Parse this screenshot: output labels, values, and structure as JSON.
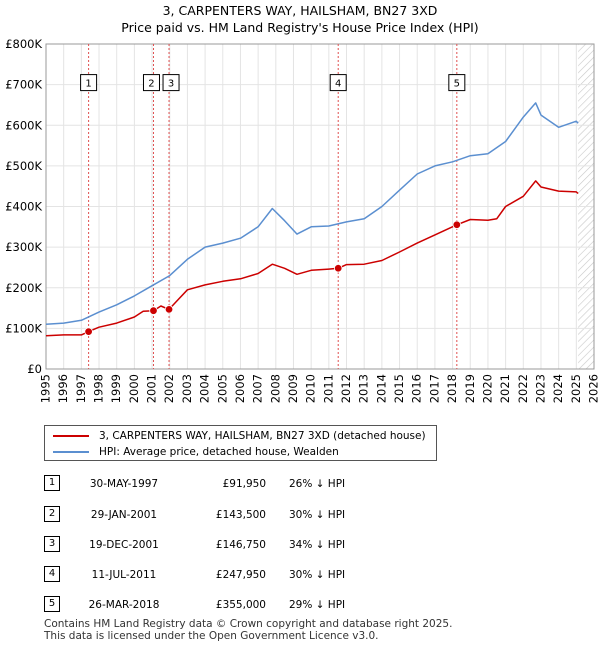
{
  "title": {
    "line1": "3, CARPENTERS WAY, HAILSHAM, BN27 3XD",
    "line2": "Price paid vs. HM Land Registry's House Price Index (HPI)"
  },
  "chart_data": {
    "type": "line",
    "title": "3, CARPENTERS WAY, HAILSHAM, BN27 3XD — Price paid vs. HM Land Registry's House Price Index (HPI)",
    "xlim": [
      1995,
      2026
    ],
    "ylim": [
      0,
      800000
    ],
    "x_ticks": [
      "1995",
      "1996",
      "1997",
      "1998",
      "1999",
      "2000",
      "2001",
      "2002",
      "2003",
      "2004",
      "2005",
      "2006",
      "2007",
      "2008",
      "2009",
      "2010",
      "2011",
      "2012",
      "2013",
      "2014",
      "2015",
      "2016",
      "2017",
      "2018",
      "2019",
      "2020",
      "2021",
      "2022",
      "2023",
      "2024",
      "2025",
      "2026"
    ],
    "y_ticks": [
      {
        "value": 0,
        "label": "£0"
      },
      {
        "value": 100000,
        "label": "£100K"
      },
      {
        "value": 200000,
        "label": "£200K"
      },
      {
        "value": 300000,
        "label": "£300K"
      },
      {
        "value": 400000,
        "label": "£400K"
      },
      {
        "value": 500000,
        "label": "£500K"
      },
      {
        "value": 600000,
        "label": "£600K"
      },
      {
        "value": 700000,
        "label": "£700K"
      },
      {
        "value": 800000,
        "label": "£800K"
      }
    ],
    "grid": true,
    "data_end_year": 2025.1,
    "series": [
      {
        "name": "3, CARPENTERS WAY, HAILSHAM, BN27 3XD (detached house)",
        "color": "#cc0000",
        "x": [
          1995.0,
          1996.0,
          1997.0,
          1997.41,
          1998.0,
          1999.0,
          2000.0,
          2000.5,
          2001.08,
          2001.5,
          2001.96,
          2002.5,
          2003.0,
          2004.0,
          2005.0,
          2006.0,
          2007.0,
          2007.8,
          2008.5,
          2009.2,
          2010.0,
          2011.0,
          2011.53,
          2012.0,
          2013.0,
          2014.0,
          2015.0,
          2016.0,
          2017.0,
          2018.24,
          2019.0,
          2020.0,
          2020.5,
          2021.0,
          2022.0,
          2022.7,
          2023.0,
          2024.0,
          2025.0,
          2025.1
        ],
        "y": [
          82000,
          84000,
          84000,
          91950,
          103000,
          113000,
          128000,
          142000,
          143500,
          155000,
          146750,
          172000,
          195000,
          207000,
          216000,
          222000,
          235000,
          258000,
          248000,
          233000,
          243000,
          246000,
          247950,
          257000,
          258000,
          267000,
          288000,
          310000,
          330000,
          355000,
          368000,
          366000,
          370000,
          400000,
          425000,
          463000,
          448000,
          438000,
          436000,
          432000
        ]
      },
      {
        "name": "HPI: Average price, detached house, Wealden",
        "color": "#5b8fd0",
        "x": [
          1995.0,
          1996.0,
          1997.0,
          1998.0,
          1999.0,
          2000.0,
          2001.0,
          2002.0,
          2003.0,
          2004.0,
          2005.0,
          2006.0,
          2007.0,
          2007.8,
          2008.5,
          2009.2,
          2010.0,
          2011.0,
          2012.0,
          2013.0,
          2014.0,
          2015.0,
          2016.0,
          2017.0,
          2018.0,
          2019.0,
          2020.0,
          2021.0,
          2022.0,
          2022.7,
          2023.0,
          2024.0,
          2025.0,
          2025.1
        ],
        "y": [
          110000,
          113000,
          120000,
          140000,
          158000,
          180000,
          205000,
          230000,
          270000,
          300000,
          310000,
          322000,
          350000,
          395000,
          365000,
          332000,
          350000,
          352000,
          362000,
          370000,
          400000,
          440000,
          480000,
          500000,
          510000,
          525000,
          530000,
          560000,
          620000,
          655000,
          625000,
          595000,
          610000,
          605000
        ]
      }
    ],
    "sales": [
      {
        "label": "1",
        "year": 1997.41,
        "price": 91950,
        "date": "30-MAY-1997",
        "price_text": "£91,950",
        "hpi": "26% ↓ HPI"
      },
      {
        "label": "2",
        "year": 2001.08,
        "price": 143500,
        "date": "29-JAN-2001",
        "price_text": "£143,500",
        "hpi": "30% ↓ HPI"
      },
      {
        "label": "3",
        "year": 2001.96,
        "price": 146750,
        "date": "19-DEC-2001",
        "price_text": "£146,750",
        "hpi": "34% ↓ HPI"
      },
      {
        "label": "4",
        "year": 2011.53,
        "price": 247950,
        "date": "11-JUL-2011",
        "price_text": "£247,950",
        "hpi": "30% ↓ HPI"
      },
      {
        "label": "5",
        "year": 2018.24,
        "price": 355000,
        "date": "26-MAR-2018",
        "price_text": "£355,000",
        "hpi": "29% ↓ HPI"
      }
    ]
  },
  "legend": {
    "property_label": "3, CARPENTERS WAY, HAILSHAM, BN27 3XD (detached house)",
    "hpi_label": "HPI: Average price, detached house, Wealden"
  },
  "footer": {
    "line1": "Contains HM Land Registry data © Crown copyright and database right 2025.",
    "line2": "This data is licensed under the Open Government Licence v3.0."
  }
}
